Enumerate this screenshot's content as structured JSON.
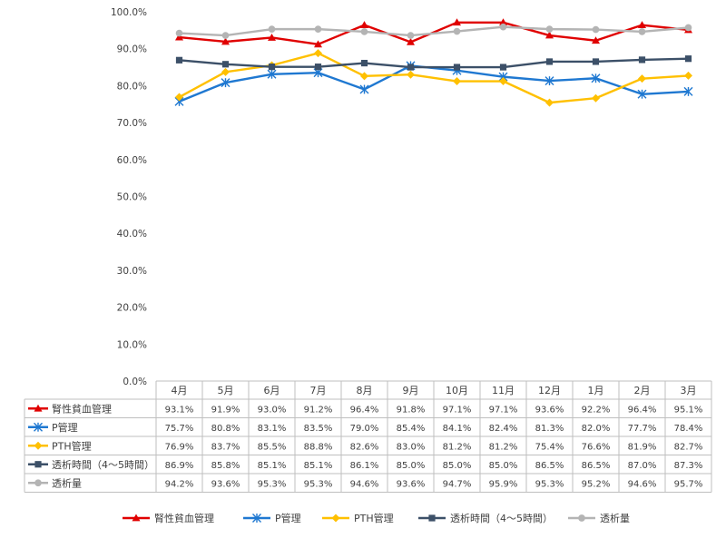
{
  "chart_data": {
    "type": "line",
    "title": "",
    "xlabel": "",
    "ylabel": "",
    "ylim": [
      0,
      100
    ],
    "y_unit": "%",
    "y_ticks": [
      "0.0%",
      "10.0%",
      "20.0%",
      "30.0%",
      "40.0%",
      "50.0%",
      "60.0%",
      "70.0%",
      "80.0%",
      "90.0%",
      "100.0%"
    ],
    "grid": false,
    "legend_position": "bottom",
    "data_table": true,
    "categories": [
      "4月",
      "5月",
      "6月",
      "7月",
      "8月",
      "9月",
      "10月",
      "11月",
      "12月",
      "1月",
      "2月",
      "3月"
    ],
    "series": [
      {
        "name": "腎性貧血管理",
        "color": "#e00000",
        "marker": "triangle",
        "values": [
          93.1,
          91.9,
          93.0,
          91.2,
          96.4,
          91.8,
          97.1,
          97.1,
          93.6,
          92.2,
          96.4,
          95.1
        ],
        "labels": [
          "93.1%",
          "91.9%",
          "93.0%",
          "91.2%",
          "96.4%",
          "91.8%",
          "97.1%",
          "97.1%",
          "93.6%",
          "92.2%",
          "96.4%",
          "95.1%"
        ]
      },
      {
        "name": "P管理",
        "color": "#1f78d1",
        "marker": "asterisk",
        "values": [
          75.7,
          80.8,
          83.1,
          83.5,
          79.0,
          85.4,
          84.1,
          82.4,
          81.3,
          82.0,
          77.7,
          78.4
        ],
        "labels": [
          "75.7%",
          "80.8%",
          "83.1%",
          "83.5%",
          "79.0%",
          "85.4%",
          "84.1%",
          "82.4%",
          "81.3%",
          "82.0%",
          "77.7%",
          "78.4%"
        ]
      },
      {
        "name": "PTH管理",
        "color": "#ffc000",
        "marker": "diamond",
        "values": [
          76.9,
          83.7,
          85.5,
          88.8,
          82.6,
          83.0,
          81.2,
          81.2,
          75.4,
          76.6,
          81.9,
          82.7
        ],
        "labels": [
          "76.9%",
          "83.7%",
          "85.5%",
          "88.8%",
          "82.6%",
          "83.0%",
          "81.2%",
          "81.2%",
          "75.4%",
          "76.6%",
          "81.9%",
          "82.7%"
        ]
      },
      {
        "name": "透析時間（4～5時間）",
        "color": "#3c5068",
        "marker": "square",
        "values": [
          86.9,
          85.8,
          85.1,
          85.1,
          86.1,
          85.0,
          85.0,
          85.0,
          86.5,
          86.5,
          87.0,
          87.3
        ],
        "labels": [
          "86.9%",
          "85.8%",
          "85.1%",
          "85.1%",
          "86.1%",
          "85.0%",
          "85.0%",
          "85.0%",
          "86.5%",
          "86.5%",
          "87.0%",
          "87.3%"
        ]
      },
      {
        "name": "透析量",
        "color": "#b4b4b4",
        "marker": "circle",
        "values": [
          94.2,
          93.6,
          95.3,
          95.3,
          94.6,
          93.6,
          94.7,
          95.9,
          95.3,
          95.2,
          94.6,
          95.7
        ],
        "labels": [
          "94.2%",
          "93.6%",
          "95.3%",
          "95.3%",
          "94.6%",
          "93.6%",
          "94.7%",
          "95.9%",
          "95.3%",
          "95.2%",
          "94.6%",
          "95.7%"
        ]
      }
    ]
  }
}
